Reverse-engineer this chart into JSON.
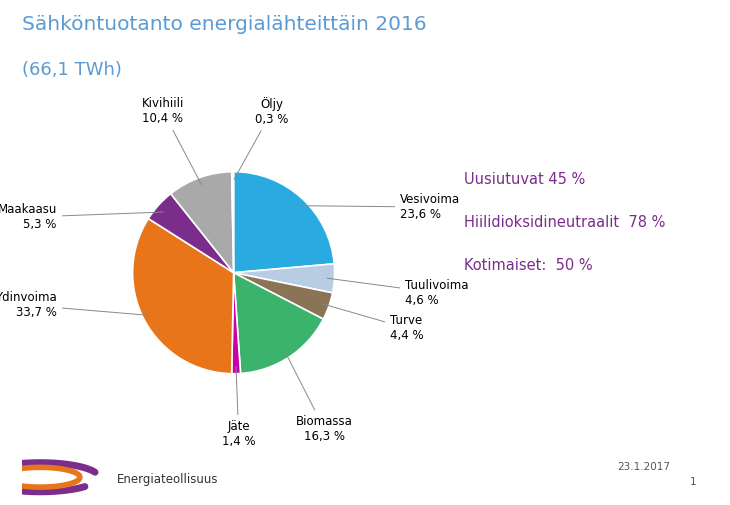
{
  "title_line1": "Sähköntuotanto energialähteittäin 2016",
  "title_line2": "(66,1 TWh)",
  "title_color": "#5B9BD5",
  "labels": [
    "Vesivoima",
    "Tuulivoima",
    "Turve",
    "Biomassa",
    "Jäte",
    "Ydinvoima",
    "Maakaasu",
    "Kivihiili",
    "Öljy"
  ],
  "values": [
    23.6,
    4.6,
    4.4,
    16.3,
    1.4,
    33.7,
    5.3,
    10.4,
    0.3
  ],
  "colors": [
    "#29ABE2",
    "#B8CCE4",
    "#8B7355",
    "#3BB36C",
    "#CC00AA",
    "#E8751A",
    "#7B2D8B",
    "#A9A9A9",
    "#F2F2F2"
  ],
  "label_percents": [
    "23,6 %",
    "4,6 %",
    "4,4 %",
    "16,3 %",
    "1,4 %",
    "33,7 %",
    "5,3 %",
    "10,4 %",
    "0,3 %"
  ],
  "info_lines": [
    "Uusiutuvat 45 %",
    "Hiilidioksidineutraalit  78 %",
    "Kotimaiset:  50 %"
  ],
  "info_color": "#7B2D8B",
  "date_text": "23.1.2017",
  "page_num": "1",
  "background_color": "#FFFFFF",
  "logo_purple": "#7B2D8B",
  "logo_orange": "#E8751A"
}
